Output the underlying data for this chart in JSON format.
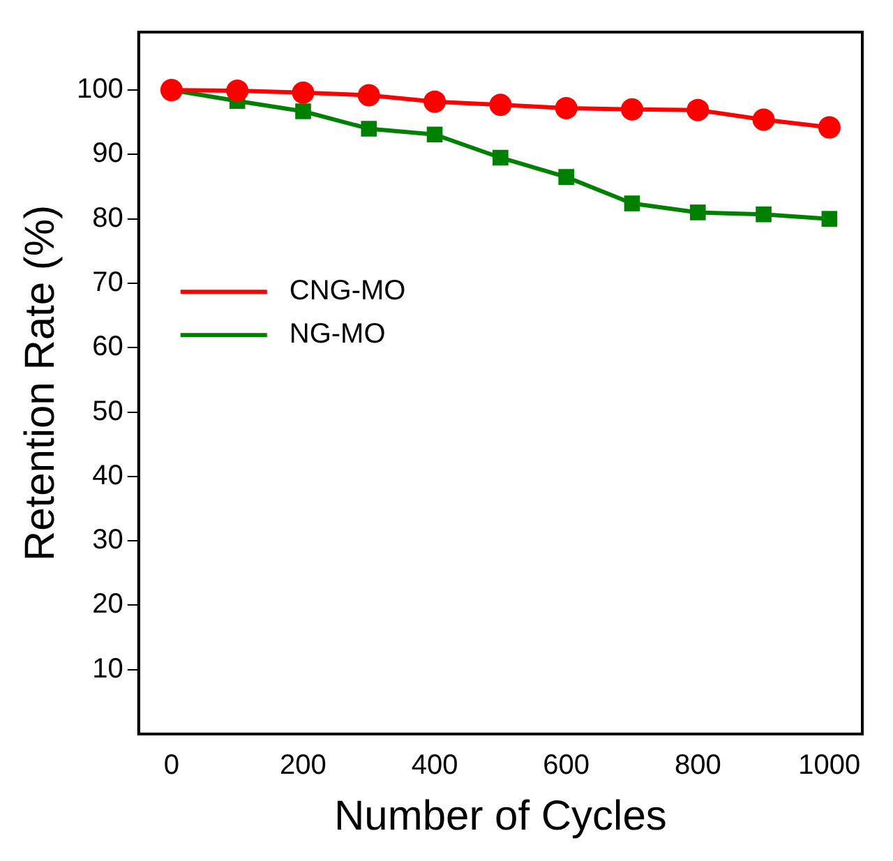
{
  "chart_data": {
    "type": "line",
    "xlabel": "Number of Cycles",
    "ylabel": "Retention Rate (%)",
    "x": [
      0,
      100,
      200,
      300,
      400,
      500,
      600,
      700,
      800,
      900,
      1000
    ],
    "series": [
      {
        "name": "CNG-MO",
        "color": "#ff0000",
        "marker": "circle",
        "values": [
          100,
          99.9,
          99.6,
          99.2,
          98.2,
          97.7,
          97.2,
          97.0,
          96.9,
          95.4,
          94.2
        ]
      },
      {
        "name": "NG-MO",
        "color": "#008000",
        "marker": "square",
        "values": [
          100,
          98.3,
          96.7,
          94.0,
          93.1,
          89.5,
          86.5,
          82.4,
          81.0,
          80.7,
          80.0
        ]
      }
    ],
    "xlim": [
      -50,
      1050
    ],
    "xticks": [
      0,
      200,
      400,
      600,
      800,
      1000
    ],
    "ylim": [
      0,
      109
    ],
    "yticks": [
      10,
      20,
      30,
      40,
      50,
      60,
      70,
      80,
      90,
      100
    ],
    "grid": false,
    "legend": "left"
  }
}
